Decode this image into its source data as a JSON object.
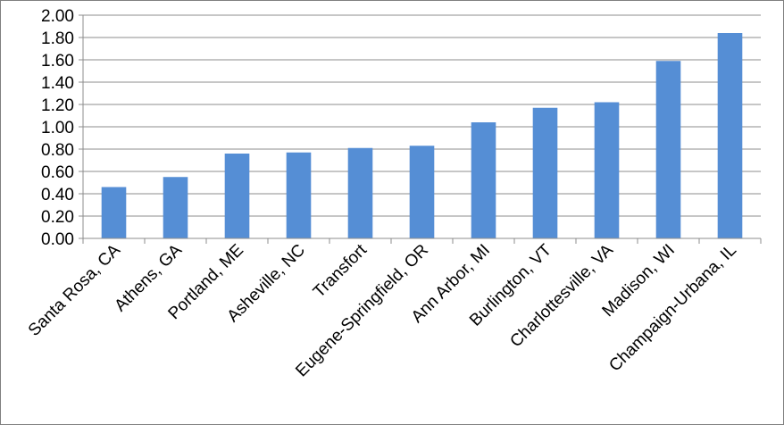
{
  "chart_data": {
    "type": "bar",
    "title": "",
    "xlabel": "",
    "ylabel": "",
    "categories": [
      "Santa Rosa, CA",
      "Athens, GA",
      "Portland, ME",
      "Asheville, NC",
      "Transfort",
      "Eugene-Springfield, OR",
      "Ann Arbor, MI",
      "Burlington, VT",
      "Charlottesville, VA",
      "Madison, WI",
      "Champaign-Urbana, IL"
    ],
    "values": [
      0.46,
      0.55,
      0.76,
      0.77,
      0.81,
      0.83,
      1.04,
      1.17,
      1.22,
      1.59,
      1.84
    ],
    "ylim": [
      0,
      2.0
    ],
    "yticks": [
      0.0,
      0.2,
      0.4,
      0.6,
      0.8,
      1.0,
      1.2,
      1.4,
      1.6,
      1.8,
      2.0
    ],
    "ytick_labels": [
      "0.00",
      "0.20",
      "0.40",
      "0.60",
      "0.80",
      "1.00",
      "1.20",
      "1.40",
      "1.60",
      "1.80",
      "2.00"
    ],
    "grid": true,
    "legend": "none",
    "bar_color": "#558ED5",
    "grid_color": "#8c8c8c"
  }
}
